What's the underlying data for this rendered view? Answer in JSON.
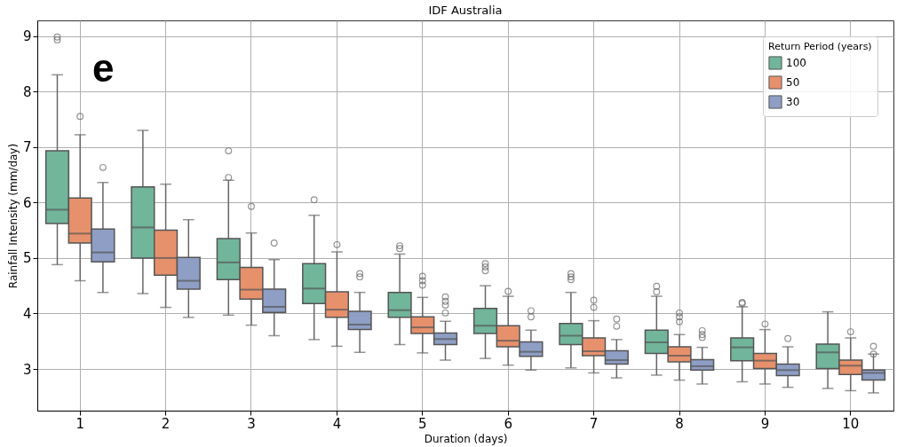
{
  "chart_data": {
    "type": "box",
    "title": "IDF Australia",
    "xlabel": "Duration (days)",
    "ylabel": "Rainfall Intensity (mm/day)",
    "legend_title": "Return Period (years)",
    "annotations": [
      "e"
    ],
    "categories": [
      "1",
      "2",
      "3",
      "4",
      "5",
      "6",
      "7",
      "8",
      "9",
      "10"
    ],
    "ylim": [
      2.25,
      9.28
    ],
    "yticks": [
      3,
      4,
      5,
      6,
      7,
      8,
      9
    ],
    "grid": true,
    "legend": "top right",
    "series": [
      {
        "name": "100",
        "color": "#71b59b",
        "boxes": [
          {
            "low": 4.88,
            "q1": 5.62,
            "median": 5.87,
            "q3": 6.93,
            "high": 8.3,
            "outliers": [
              8.93,
              8.98
            ]
          },
          {
            "low": 4.36,
            "q1": 5.0,
            "median": 5.55,
            "q3": 6.28,
            "high": 7.3
          },
          {
            "low": 3.97,
            "q1": 4.61,
            "median": 4.92,
            "q3": 5.35,
            "high": 6.4,
            "outliers": [
              6.45,
              6.93
            ]
          },
          {
            "low": 3.53,
            "q1": 4.18,
            "median": 4.45,
            "q3": 4.9,
            "high": 5.77,
            "outliers": [
              6.05
            ]
          },
          {
            "low": 3.44,
            "q1": 3.93,
            "median": 4.06,
            "q3": 4.38,
            "high": 5.07,
            "outliers": [
              5.17,
              5.22
            ]
          },
          {
            "low": 3.19,
            "q1": 3.64,
            "median": 3.78,
            "q3": 4.09,
            "high": 4.5,
            "outliers": [
              4.77,
              4.84,
              4.9
            ]
          },
          {
            "low": 3.02,
            "q1": 3.44,
            "median": 3.6,
            "q3": 3.82,
            "high": 4.38,
            "outliers": [
              4.61,
              4.66,
              4.72
            ]
          },
          {
            "low": 2.89,
            "q1": 3.28,
            "median": 3.48,
            "q3": 3.7,
            "high": 4.31,
            "outliers": [
              4.39,
              4.49
            ]
          },
          {
            "low": 2.77,
            "q1": 3.15,
            "median": 3.39,
            "q3": 3.56,
            "high": 4.12,
            "outliers": [
              4.18,
              4.2
            ]
          },
          {
            "low": 2.65,
            "q1": 3.01,
            "median": 3.3,
            "q3": 3.45,
            "high": 4.03
          }
        ]
      },
      {
        "name": "50",
        "color": "#e6916c",
        "boxes": [
          {
            "low": 4.59,
            "q1": 5.27,
            "median": 5.44,
            "q3": 6.08,
            "high": 7.22,
            "outliers": [
              7.55
            ]
          },
          {
            "low": 4.11,
            "q1": 4.69,
            "median": 5.0,
            "q3": 5.5,
            "high": 6.33
          },
          {
            "low": 3.79,
            "q1": 4.26,
            "median": 4.43,
            "q3": 4.83,
            "high": 5.45,
            "outliers": [
              5.93
            ]
          },
          {
            "low": 3.41,
            "q1": 3.93,
            "median": 4.07,
            "q3": 4.39,
            "high": 5.11,
            "outliers": [
              5.24
            ]
          },
          {
            "low": 3.29,
            "q1": 3.64,
            "median": 3.75,
            "q3": 3.94,
            "high": 4.29,
            "outliers": [
              4.51,
              4.59,
              4.67
            ]
          },
          {
            "low": 3.07,
            "q1": 3.4,
            "median": 3.51,
            "q3": 3.78,
            "high": 4.31,
            "outliers": [
              4.4
            ]
          },
          {
            "low": 2.93,
            "q1": 3.24,
            "median": 3.32,
            "q3": 3.56,
            "high": 3.87,
            "outliers": [
              4.11,
              4.24
            ]
          },
          {
            "low": 2.8,
            "q1": 3.13,
            "median": 3.24,
            "q3": 3.4,
            "high": 3.62,
            "outliers": [
              3.85,
              3.94,
              4.01
            ]
          },
          {
            "low": 2.73,
            "q1": 3.01,
            "median": 3.15,
            "q3": 3.28,
            "high": 3.71,
            "outliers": [
              3.81
            ]
          },
          {
            "low": 2.61,
            "q1": 2.9,
            "median": 3.06,
            "q3": 3.16,
            "high": 3.56,
            "outliers": [
              3.67
            ]
          }
        ]
      },
      {
        "name": "30",
        "color": "#8e9ec4",
        "boxes": [
          {
            "low": 4.38,
            "q1": 4.93,
            "median": 5.1,
            "q3": 5.52,
            "high": 6.36,
            "outliers": [
              6.63
            ]
          },
          {
            "low": 3.93,
            "q1": 4.44,
            "median": 4.59,
            "q3": 5.01,
            "high": 5.69
          },
          {
            "low": 3.6,
            "q1": 4.02,
            "median": 4.12,
            "q3": 4.44,
            "high": 4.97,
            "outliers": [
              5.27
            ]
          },
          {
            "low": 3.3,
            "q1": 3.71,
            "median": 3.8,
            "q3": 4.04,
            "high": 4.38,
            "outliers": [
              4.66,
              4.72
            ]
          },
          {
            "low": 3.16,
            "q1": 3.44,
            "median": 3.54,
            "q3": 3.65,
            "high": 3.86,
            "outliers": [
              4.01,
              4.15,
              4.22,
              4.3
            ]
          },
          {
            "low": 2.98,
            "q1": 3.23,
            "median": 3.31,
            "q3": 3.49,
            "high": 3.7,
            "outliers": [
              3.94,
              4.05
            ]
          },
          {
            "low": 2.84,
            "q1": 3.09,
            "median": 3.16,
            "q3": 3.33,
            "high": 3.53,
            "outliers": [
              3.77,
              3.9
            ]
          },
          {
            "low": 2.73,
            "q1": 2.98,
            "median": 3.05,
            "q3": 3.17,
            "high": 3.39,
            "outliers": [
              3.57,
              3.62,
              3.69
            ]
          },
          {
            "low": 2.67,
            "q1": 2.88,
            "median": 2.98,
            "q3": 3.09,
            "high": 3.4,
            "outliers": [
              3.55
            ]
          },
          {
            "low": 2.57,
            "q1": 2.8,
            "median": 2.93,
            "q3": 2.98,
            "high": 3.27,
            "outliers": [
              3.27,
              3.41
            ]
          }
        ]
      }
    ]
  }
}
